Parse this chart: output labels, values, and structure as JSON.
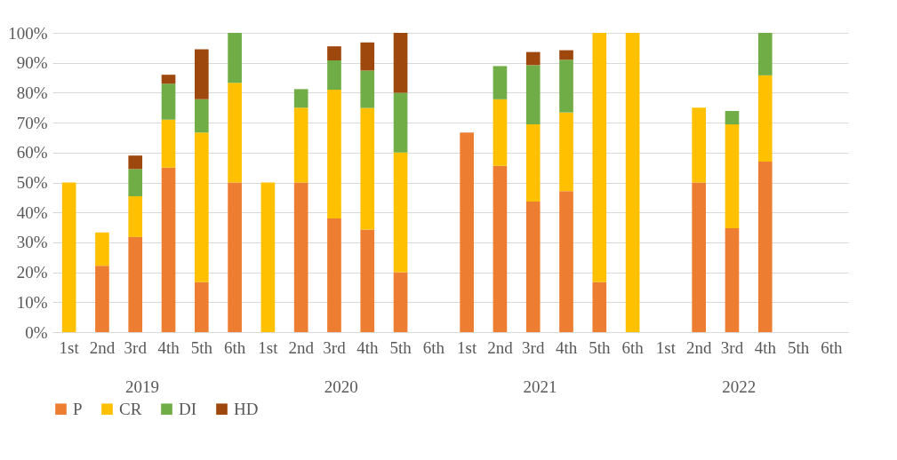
{
  "chart_data": {
    "type": "bar",
    "stacked": true,
    "categories": [
      "1st",
      "2nd",
      "3rd",
      "4th",
      "5th",
      "6th",
      "1st",
      "2nd",
      "3rd",
      "4th",
      "5th",
      "6th",
      "1st",
      "2nd",
      "3rd",
      "4th",
      "5th",
      "6th",
      "1st",
      "2nd",
      "3rd",
      "4th",
      "5th",
      "6th"
    ],
    "annotations": [
      "2019",
      "2020",
      "2021",
      "2022"
    ],
    "series": [
      {
        "name": "P",
        "color": "#ed7d31",
        "values": [
          null,
          22.2,
          31.8,
          55,
          16.7,
          50,
          null,
          50,
          38,
          34.3,
          20,
          null,
          66.7,
          55.6,
          43.6,
          47.1,
          16.7,
          null,
          null,
          50,
          34.7,
          57,
          null,
          null
        ]
      },
      {
        "name": "CR",
        "color": "#ffc000",
        "values": [
          50,
          11.1,
          13.6,
          16,
          50,
          33.3,
          50,
          25,
          43,
          40.6,
          40,
          null,
          null,
          22.2,
          25.8,
          26.3,
          83.3,
          100,
          null,
          25,
          34.7,
          28.8,
          null,
          null
        ]
      },
      {
        "name": "DI",
        "color": "#70ad47",
        "values": [
          null,
          null,
          9.1,
          12,
          11.1,
          16.7,
          null,
          6.2,
          9.8,
          12.5,
          20,
          null,
          null,
          11.1,
          19.8,
          17.6,
          null,
          null,
          null,
          null,
          4.5,
          14.2,
          null,
          null
        ]
      },
      {
        "name": "HD",
        "color": "#9e480e",
        "values": [
          null,
          null,
          4.5,
          3,
          16.7,
          null,
          null,
          null,
          4.7,
          9.4,
          20,
          null,
          null,
          null,
          4.4,
          3.2,
          null,
          null,
          null,
          null,
          null,
          null,
          null,
          null
        ]
      }
    ],
    "ylim": [
      0,
      100
    ],
    "yticks": [
      {
        "value": 0,
        "label": "0%"
      },
      {
        "value": 10,
        "label": "10%"
      },
      {
        "value": 20,
        "label": "20%"
      },
      {
        "value": 30,
        "label": "30%"
      },
      {
        "value": 40,
        "label": "40%"
      },
      {
        "value": 50,
        "label": "50%"
      },
      {
        "value": 60,
        "label": "60%"
      },
      {
        "value": 70,
        "label": "70%"
      },
      {
        "value": 80,
        "label": "80%"
      },
      {
        "value": 90,
        "label": "90%"
      },
      {
        "value": 100,
        "label": "100%"
      }
    ],
    "grid": "y",
    "legend": "bottom"
  }
}
